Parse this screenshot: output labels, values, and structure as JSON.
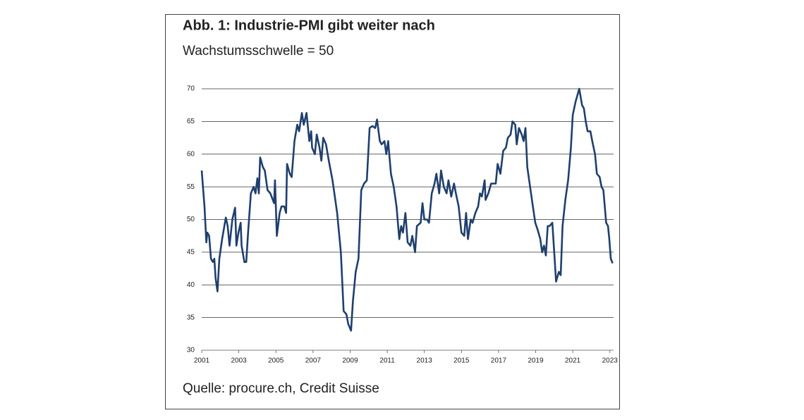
{
  "chart_data": {
    "type": "line",
    "title": "Abb. 1: Industrie-PMI gibt weiter nach",
    "subtitle": "Wachstumsschwelle = 50",
    "source": "Quelle: procure.ch, Credit Suisse",
    "color": "#1f3f6e",
    "grid": true,
    "xlim": [
      2001,
      2023.2
    ],
    "xticks": [
      2001,
      2003,
      2005,
      2007,
      2009,
      2011,
      2013,
      2015,
      2017,
      2019,
      2021,
      2023
    ],
    "ylim": [
      30,
      70
    ],
    "yticks": [
      30,
      35,
      40,
      45,
      50,
      55,
      60,
      65,
      70
    ],
    "x": [
      2001.0,
      2001.15,
      2001.25,
      2001.3,
      2001.4,
      2001.5,
      2001.6,
      2001.68,
      2001.75,
      2001.85,
      2001.95,
      2002.1,
      2002.3,
      2002.4,
      2002.5,
      2002.65,
      2002.8,
      2002.87,
      2002.98,
      2003.1,
      2003.15,
      2003.3,
      2003.4,
      2003.5,
      2003.65,
      2003.8,
      2003.9,
      2004.0,
      2004.08,
      2004.15,
      2004.3,
      2004.4,
      2004.55,
      2004.7,
      2004.9,
      2004.95,
      2005.05,
      2005.2,
      2005.3,
      2005.45,
      2005.55,
      2005.6,
      2005.75,
      2005.85,
      2006.0,
      2006.15,
      2006.25,
      2006.4,
      2006.5,
      2006.65,
      2006.8,
      2006.9,
      2006.95,
      2007.1,
      2007.2,
      2007.35,
      2007.45,
      2007.55,
      2007.7,
      2007.85,
      2008.05,
      2008.3,
      2008.5,
      2008.65,
      2008.8,
      2008.9,
      2009.05,
      2009.15,
      2009.3,
      2009.45,
      2009.6,
      2009.75,
      2009.9,
      2010.05,
      2010.2,
      2010.35,
      2010.45,
      2010.6,
      2010.7,
      2010.85,
      2010.95,
      2011.05,
      2011.2,
      2011.35,
      2011.5,
      2011.65,
      2011.75,
      2011.85,
      2011.98,
      2012.1,
      2012.25,
      2012.35,
      2012.5,
      2012.6,
      2012.8,
      2012.9,
      2013.0,
      2013.15,
      2013.25,
      2013.4,
      2013.55,
      2013.65,
      2013.8,
      2013.9,
      2014.05,
      2014.2,
      2014.3,
      2014.45,
      2014.6,
      2014.7,
      2014.85,
      2015.0,
      2015.15,
      2015.25,
      2015.35,
      2015.5,
      2015.6,
      2015.75,
      2015.9,
      2016.0,
      2016.1,
      2016.25,
      2016.3,
      2016.45,
      2016.6,
      2016.75,
      2016.85,
      2016.95,
      2017.1,
      2017.25,
      2017.4,
      2017.5,
      2017.65,
      2017.75,
      2017.9,
      2017.98,
      2018.1,
      2018.25,
      2018.35,
      2018.45,
      2018.55,
      2018.7,
      2018.85,
      2018.98,
      2019.1,
      2019.25,
      2019.35,
      2019.45,
      2019.55,
      2019.65,
      2019.75,
      2019.9,
      2020.0,
      2020.1,
      2020.25,
      2020.35,
      2020.45,
      2020.6,
      2020.75,
      2020.9,
      2021.0,
      2021.15,
      2021.25,
      2021.35,
      2021.5,
      2021.6,
      2021.7,
      2021.8,
      2021.95,
      2022.05,
      2022.2,
      2022.3,
      2022.45,
      2022.55,
      2022.65,
      2022.8,
      2022.9,
      2022.97,
      2023.05,
      2023.15
    ],
    "values": [
      57.5,
      52,
      46.5,
      48,
      47.5,
      44,
      43.5,
      44,
      41,
      39,
      44,
      47,
      50.3,
      49,
      46,
      50,
      51.8,
      46,
      48,
      49.5,
      46,
      43.5,
      43.5,
      48,
      54,
      55,
      54,
      56.3,
      54,
      59.5,
      58,
      57.5,
      54.5,
      54,
      52.5,
      56,
      47.5,
      51,
      52,
      52,
      51,
      58.5,
      57,
      56.5,
      62,
      64.5,
      63.5,
      66.3,
      64.5,
      66.3,
      62,
      63.5,
      61,
      60,
      63,
      61,
      59,
      62.5,
      61.5,
      59,
      56,
      51,
      45,
      36,
      35.5,
      34,
      33,
      37.5,
      42,
      44,
      54.5,
      55.5,
      56,
      64,
      64.3,
      64,
      65.3,
      62,
      61.5,
      62,
      60,
      62,
      57,
      55,
      52,
      47,
      49,
      48,
      51,
      46.5,
      46,
      47.5,
      45,
      49,
      49.5,
      52.5,
      50,
      50,
      49.5,
      54,
      55.5,
      57,
      54,
      57.5,
      55,
      54,
      56,
      53.5,
      55.5,
      54,
      52,
      48,
      47.5,
      51,
      47,
      50,
      49.5,
      51,
      52,
      54,
      53.5,
      56,
      53,
      54,
      55.5,
      55.5,
      55.5,
      58.5,
      57,
      60.5,
      61,
      62.5,
      63,
      65,
      64.5,
      61.5,
      64,
      63,
      62,
      64,
      58,
      55,
      52,
      49.5,
      48.5,
      47,
      45,
      46,
      44.5,
      49,
      49,
      49.5,
      45,
      40.5,
      42,
      41.5,
      49,
      53,
      56,
      61,
      66,
      68,
      69,
      70,
      67.5,
      67,
      65,
      63.5,
      63.5,
      62,
      60,
      57,
      56.5,
      55,
      54.5,
      49.5,
      49,
      47,
      44,
      43.3
    ]
  }
}
